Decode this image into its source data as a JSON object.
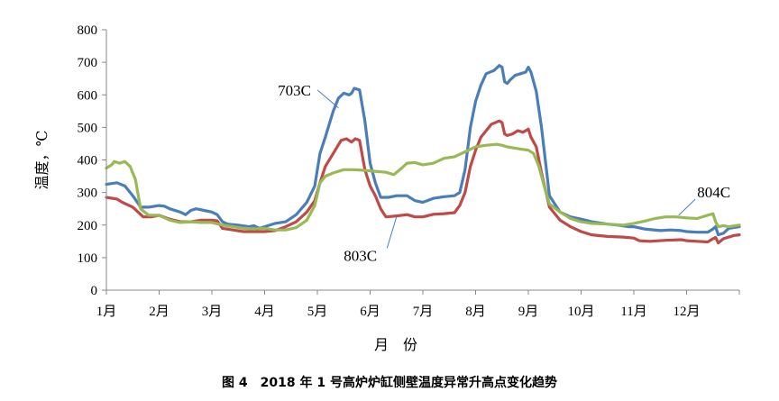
{
  "caption": "图 4　2018 年 1 号高炉炉缸侧壁温度异常升高点变化趋势",
  "chart_data": {
    "type": "line",
    "title": "",
    "xlabel": "月　份",
    "ylabel": "温度，℃",
    "ylim": [
      0,
      800
    ],
    "yticks": [
      0,
      100,
      200,
      300,
      400,
      500,
      600,
      700,
      800
    ],
    "xlim": [
      1,
      13
    ],
    "month_labels": [
      "1月",
      "2月",
      "3月",
      "4月",
      "5月",
      "6月",
      "7月",
      "8月",
      "9月",
      "10月",
      "11月",
      "12月"
    ],
    "grid": false,
    "legend": "none",
    "series": [
      {
        "name": "703C",
        "color": "#4a7ebb",
        "points": [
          [
            1.0,
            325
          ],
          [
            1.2,
            330
          ],
          [
            1.35,
            320
          ],
          [
            1.5,
            290
          ],
          [
            1.65,
            255
          ],
          [
            1.8,
            255
          ],
          [
            2.0,
            260
          ],
          [
            2.1,
            258
          ],
          [
            2.2,
            250
          ],
          [
            2.4,
            240
          ],
          [
            2.5,
            232
          ],
          [
            2.6,
            245
          ],
          [
            2.7,
            250
          ],
          [
            2.85,
            245
          ],
          [
            3.0,
            240
          ],
          [
            3.1,
            232
          ],
          [
            3.2,
            210
          ],
          [
            3.3,
            203
          ],
          [
            3.5,
            200
          ],
          [
            3.7,
            195
          ],
          [
            3.8,
            198
          ],
          [
            3.9,
            190
          ],
          [
            4.0,
            195
          ],
          [
            4.2,
            205
          ],
          [
            4.4,
            210
          ],
          [
            4.6,
            232
          ],
          [
            4.8,
            270
          ],
          [
            4.95,
            320
          ],
          [
            5.05,
            420
          ],
          [
            5.15,
            470
          ],
          [
            5.3,
            550
          ],
          [
            5.4,
            590
          ],
          [
            5.5,
            605
          ],
          [
            5.6,
            600
          ],
          [
            5.65,
            605
          ],
          [
            5.7,
            620
          ],
          [
            5.8,
            615
          ],
          [
            5.9,
            520
          ],
          [
            6.0,
            390
          ],
          [
            6.1,
            330
          ],
          [
            6.2,
            285
          ],
          [
            6.35,
            285
          ],
          [
            6.5,
            290
          ],
          [
            6.7,
            290
          ],
          [
            6.85,
            275
          ],
          [
            7.0,
            270
          ],
          [
            7.2,
            282
          ],
          [
            7.4,
            287
          ],
          [
            7.6,
            290
          ],
          [
            7.7,
            300
          ],
          [
            7.8,
            370
          ],
          [
            7.9,
            500
          ],
          [
            8.0,
            580
          ],
          [
            8.1,
            630
          ],
          [
            8.2,
            665
          ],
          [
            8.35,
            675
          ],
          [
            8.45,
            690
          ],
          [
            8.5,
            685
          ],
          [
            8.55,
            640
          ],
          [
            8.6,
            635
          ],
          [
            8.65,
            645
          ],
          [
            8.75,
            660
          ],
          [
            8.85,
            665
          ],
          [
            8.95,
            670
          ],
          [
            9.0,
            685
          ],
          [
            9.05,
            670
          ],
          [
            9.15,
            610
          ],
          [
            9.25,
            500
          ],
          [
            9.4,
            290
          ],
          [
            9.6,
            240
          ],
          [
            9.8,
            225
          ],
          [
            10.0,
            218
          ],
          [
            10.2,
            210
          ],
          [
            10.5,
            203
          ],
          [
            10.7,
            200
          ],
          [
            10.9,
            195
          ],
          [
            11.0,
            195
          ],
          [
            11.2,
            188
          ],
          [
            11.5,
            183
          ],
          [
            11.7,
            185
          ],
          [
            11.9,
            183
          ],
          [
            12.0,
            180
          ],
          [
            12.2,
            178
          ],
          [
            12.4,
            178
          ],
          [
            12.5,
            188
          ],
          [
            12.55,
            195
          ],
          [
            12.6,
            170
          ],
          [
            12.7,
            175
          ],
          [
            12.8,
            190
          ],
          [
            13.0,
            195
          ]
        ]
      },
      {
        "name": "803C",
        "color": "#be4b48",
        "points": [
          [
            1.0,
            285
          ],
          [
            1.2,
            280
          ],
          [
            1.3,
            270
          ],
          [
            1.5,
            255
          ],
          [
            1.7,
            225
          ],
          [
            1.85,
            225
          ],
          [
            2.0,
            230
          ],
          [
            2.2,
            218
          ],
          [
            2.4,
            210
          ],
          [
            2.6,
            210
          ],
          [
            2.8,
            215
          ],
          [
            3.0,
            215
          ],
          [
            3.1,
            213
          ],
          [
            3.2,
            190
          ],
          [
            3.4,
            185
          ],
          [
            3.6,
            180
          ],
          [
            3.8,
            180
          ],
          [
            4.0,
            180
          ],
          [
            4.2,
            183
          ],
          [
            4.4,
            195
          ],
          [
            4.6,
            210
          ],
          [
            4.8,
            240
          ],
          [
            4.95,
            275
          ],
          [
            5.05,
            330
          ],
          [
            5.15,
            380
          ],
          [
            5.3,
            420
          ],
          [
            5.45,
            460
          ],
          [
            5.55,
            465
          ],
          [
            5.65,
            455
          ],
          [
            5.72,
            465
          ],
          [
            5.8,
            460
          ],
          [
            5.9,
            370
          ],
          [
            6.0,
            320
          ],
          [
            6.1,
            290
          ],
          [
            6.2,
            250
          ],
          [
            6.3,
            225
          ],
          [
            6.5,
            228
          ],
          [
            6.7,
            232
          ],
          [
            6.85,
            225
          ],
          [
            7.0,
            225
          ],
          [
            7.2,
            233
          ],
          [
            7.4,
            235
          ],
          [
            7.6,
            238
          ],
          [
            7.7,
            260
          ],
          [
            7.8,
            300
          ],
          [
            7.9,
            380
          ],
          [
            8.0,
            430
          ],
          [
            8.1,
            470
          ],
          [
            8.2,
            490
          ],
          [
            8.3,
            510
          ],
          [
            8.45,
            520
          ],
          [
            8.5,
            515
          ],
          [
            8.55,
            480
          ],
          [
            8.6,
            475
          ],
          [
            8.7,
            480
          ],
          [
            8.8,
            490
          ],
          [
            8.9,
            485
          ],
          [
            9.0,
            495
          ],
          [
            9.05,
            470
          ],
          [
            9.15,
            440
          ],
          [
            9.25,
            360
          ],
          [
            9.4,
            255
          ],
          [
            9.6,
            215
          ],
          [
            9.8,
            195
          ],
          [
            10.0,
            180
          ],
          [
            10.2,
            170
          ],
          [
            10.5,
            165
          ],
          [
            10.8,
            163
          ],
          [
            11.0,
            160
          ],
          [
            11.1,
            152
          ],
          [
            11.3,
            150
          ],
          [
            11.6,
            153
          ],
          [
            11.9,
            155
          ],
          [
            12.0,
            152
          ],
          [
            12.2,
            150
          ],
          [
            12.4,
            148
          ],
          [
            12.5,
            158
          ],
          [
            12.55,
            162
          ],
          [
            12.6,
            145
          ],
          [
            12.7,
            158
          ],
          [
            12.9,
            168
          ],
          [
            13.0,
            170
          ]
        ]
      },
      {
        "name": "804C",
        "color": "#98b954",
        "points": [
          [
            1.0,
            375
          ],
          [
            1.1,
            385
          ],
          [
            1.15,
            395
          ],
          [
            1.25,
            390
          ],
          [
            1.35,
            395
          ],
          [
            1.45,
            380
          ],
          [
            1.55,
            340
          ],
          [
            1.65,
            250
          ],
          [
            1.8,
            230
          ],
          [
            2.0,
            230
          ],
          [
            2.2,
            215
          ],
          [
            2.4,
            208
          ],
          [
            2.6,
            210
          ],
          [
            2.8,
            208
          ],
          [
            3.0,
            208
          ],
          [
            3.2,
            200
          ],
          [
            3.4,
            195
          ],
          [
            3.6,
            190
          ],
          [
            3.8,
            188
          ],
          [
            4.0,
            190
          ],
          [
            4.2,
            185
          ],
          [
            4.4,
            185
          ],
          [
            4.6,
            192
          ],
          [
            4.8,
            215
          ],
          [
            4.95,
            260
          ],
          [
            5.05,
            330
          ],
          [
            5.15,
            350
          ],
          [
            5.3,
            360
          ],
          [
            5.5,
            370
          ],
          [
            5.7,
            370
          ],
          [
            5.9,
            368
          ],
          [
            6.1,
            365
          ],
          [
            6.3,
            362
          ],
          [
            6.45,
            355
          ],
          [
            6.6,
            375
          ],
          [
            6.7,
            390
          ],
          [
            6.85,
            392
          ],
          [
            7.0,
            385
          ],
          [
            7.2,
            390
          ],
          [
            7.4,
            405
          ],
          [
            7.6,
            410
          ],
          [
            7.8,
            425
          ],
          [
            8.0,
            440
          ],
          [
            8.2,
            445
          ],
          [
            8.4,
            448
          ],
          [
            8.5,
            445
          ],
          [
            8.6,
            440
          ],
          [
            8.8,
            435
          ],
          [
            9.0,
            430
          ],
          [
            9.1,
            420
          ],
          [
            9.2,
            380
          ],
          [
            9.3,
            320
          ],
          [
            9.4,
            265
          ],
          [
            9.6,
            240
          ],
          [
            9.8,
            220
          ],
          [
            10.0,
            210
          ],
          [
            10.2,
            205
          ],
          [
            10.5,
            203
          ],
          [
            10.8,
            200
          ],
          [
            11.0,
            205
          ],
          [
            11.2,
            212
          ],
          [
            11.4,
            220
          ],
          [
            11.6,
            225
          ],
          [
            11.8,
            225
          ],
          [
            12.0,
            222
          ],
          [
            12.2,
            220
          ],
          [
            12.4,
            230
          ],
          [
            12.5,
            235
          ],
          [
            12.55,
            210
          ],
          [
            12.6,
            195
          ],
          [
            12.7,
            198
          ],
          [
            12.8,
            195
          ],
          [
            13.0,
            200
          ]
        ]
      }
    ],
    "annotations": [
      {
        "text": "703C",
        "x": 4.25,
        "y": 598,
        "x2": 5.4,
        "y2": 560
      },
      {
        "text": "803C",
        "x": 5.5,
        "y": 90,
        "x2": 6.5,
        "y2": 225
      },
      {
        "text": "804C",
        "x": 12.2,
        "y": 285,
        "x2": 11.85,
        "y2": 230
      }
    ]
  }
}
